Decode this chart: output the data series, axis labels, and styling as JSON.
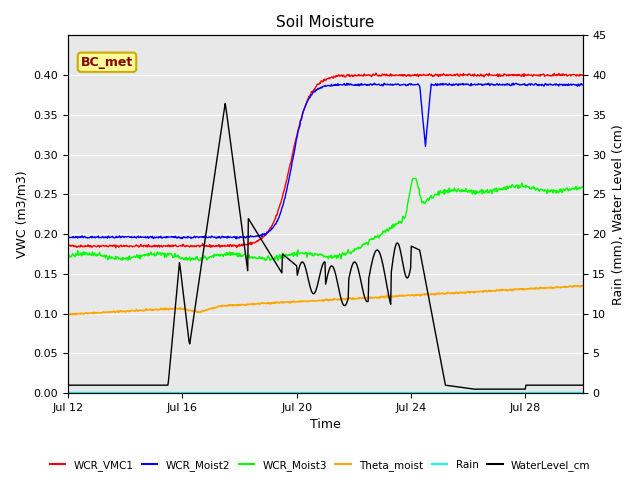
{
  "title": "Soil Moisture",
  "xlabel": "Time",
  "ylabel_left": "VWC (m3/m3)",
  "ylabel_right": "Rain (mm), Water Level (cm)",
  "ylim_left": [
    0,
    0.45
  ],
  "ylim_right": [
    0,
    45
  ],
  "yticks_left": [
    0.0,
    0.05,
    0.1,
    0.15,
    0.2,
    0.25,
    0.3,
    0.35,
    0.4
  ],
  "yticks_right": [
    0,
    5,
    10,
    15,
    20,
    25,
    30,
    35,
    40,
    45
  ],
  "xtick_labels": [
    "Jul 12",
    "Jul 16",
    "Jul 20",
    "Jul 24",
    "Jul 28"
  ],
  "background_color": "#e8e8e8",
  "annotation_box": "BC_met",
  "annotation_box_color": "#ffff99",
  "annotation_box_text_color": "#8b0000",
  "annotation_box_edge_color": "#ccaa00"
}
